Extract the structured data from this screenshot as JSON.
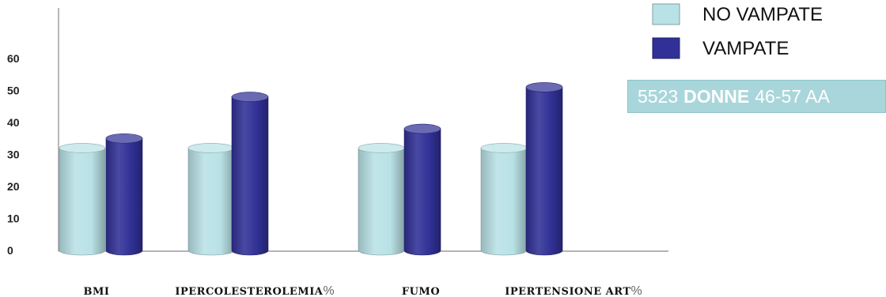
{
  "chart_data": {
    "type": "bar",
    "categories": [
      "BMI",
      "IPERCOLESTEROLEMIA",
      "FUMO",
      "IPERTENSIONE ART"
    ],
    "category_units": [
      "",
      "%",
      "",
      "%"
    ],
    "yticks": [
      0,
      10,
      20,
      30,
      40,
      50,
      60
    ],
    "ylim": [
      0,
      70
    ],
    "legend_position": "top-right",
    "series": [
      {
        "name": "NO VAMPATE",
        "values": [
          32,
          32,
          32,
          32
        ],
        "color": "#b9e2e6"
      },
      {
        "name": "VAMPATE",
        "values": [
          35,
          48,
          38,
          51
        ],
        "color": "#303096"
      }
    ],
    "annotation": {
      "count": "5523",
      "group": "DONNE",
      "age": "46-57 AA"
    }
  }
}
